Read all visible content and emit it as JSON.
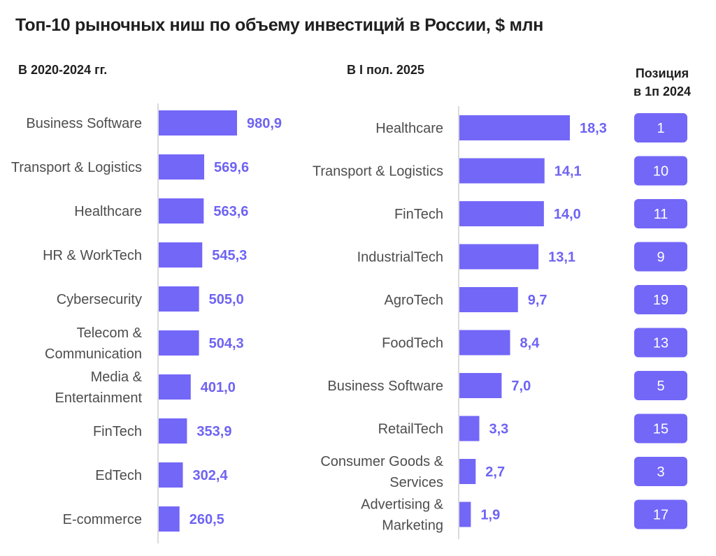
{
  "title": "Топ-10 рыночных ниш по объему инвестиций в России, $ млн",
  "left_subtitle": "В 2020-2024 гг.",
  "right_subtitle": "В I пол. 2025",
  "position_header_line1": "Позиция",
  "position_header_line2": "в 1п 2024",
  "colors": {
    "bar": "#7367f8",
    "value_text": "#6e63f3",
    "axis": "#cfcfcf",
    "badge": "#7367f8"
  },
  "chart_data": [
    {
      "type": "bar",
      "orientation": "horizontal",
      "title": "В 2020-2024 гг.",
      "categories": [
        "Business Software",
        "Transport & Logistics",
        "Healthcare",
        "HR & WorkTech",
        "Cybersecurity",
        "Telecom & Communication",
        "Media & Entertainment",
        "FinTech",
        "EdTech",
        "E-commerce"
      ],
      "category_lines": [
        [
          "Business Software"
        ],
        [
          "Transport & Logistics"
        ],
        [
          "Healthcare"
        ],
        [
          "HR & WorkTech"
        ],
        [
          "Cybersecurity"
        ],
        [
          "Telecom &",
          "Communication"
        ],
        [
          "Media &",
          "Entertainment"
        ],
        [
          "FinTech"
        ],
        [
          "EdTech"
        ],
        [
          "E-commerce"
        ]
      ],
      "values": [
        980.9,
        569.6,
        563.6,
        545.3,
        505.0,
        504.3,
        401.0,
        353.9,
        302.4,
        260.5
      ],
      "value_labels": [
        "980,9",
        "569,6",
        "563,6",
        "545,3",
        "505,0",
        "504,3",
        "401,0",
        "353,9",
        "302,4",
        "260,5"
      ]
    },
    {
      "type": "bar",
      "orientation": "horizontal",
      "title": "В I пол. 2025",
      "categories": [
        "Healthcare",
        "Transport & Logistics",
        "FinTech",
        "IndustrialTech",
        "AgroTech",
        "FoodTech",
        "Business Software",
        "RetailTech",
        "Consumer Goods & Services",
        "Advertising & Marketing"
      ],
      "category_lines": [
        [
          "Healthcare"
        ],
        [
          "Transport & Logistics"
        ],
        [
          "FinTech"
        ],
        [
          "IndustrialTech"
        ],
        [
          "AgroTech"
        ],
        [
          "FoodTech"
        ],
        [
          "Business Software"
        ],
        [
          "RetailTech"
        ],
        [
          "Consumer Goods &",
          "Services"
        ],
        [
          "Advertising &",
          "Marketing"
        ]
      ],
      "values": [
        18.3,
        14.1,
        14.0,
        13.1,
        9.7,
        8.4,
        7.0,
        3.3,
        2.7,
        1.9
      ],
      "value_labels": [
        "18,3",
        "14,1",
        "14,0",
        "13,1",
        "9,7",
        "8,4",
        "7,0",
        "3,3",
        "2,7",
        "1,9"
      ],
      "positions_1h_2024": [
        "1",
        "10",
        "11",
        "9",
        "19",
        "13",
        "5",
        "15",
        "3",
        "17"
      ]
    }
  ]
}
